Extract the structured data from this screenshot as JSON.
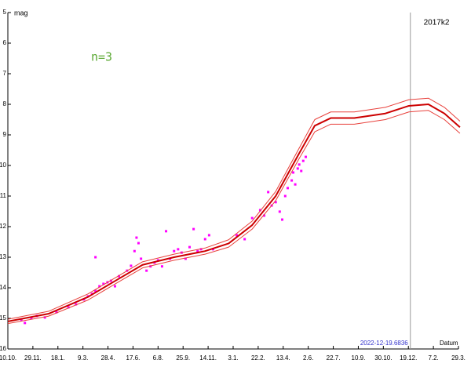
{
  "chart_data": {
    "type": "line",
    "title": "2017k2",
    "y_label": "mag",
    "x_label": "Datum",
    "annotation": "n=3",
    "x": [
      0,
      81,
      160,
      222,
      269,
      332,
      394,
      441,
      488,
      535,
      582,
      613,
      645,
      692,
      754,
      801,
      840,
      872,
      903
    ],
    "series": [
      {
        "color": "#cc0000",
        "values": [
          15.1,
          14.85,
          14.3,
          13.7,
          13.25,
          13.0,
          12.8,
          12.55,
          11.95,
          11.0,
          9.6,
          8.7,
          8.45,
          8.45,
          8.3,
          8.05,
          8.0,
          8.3,
          8.75
        ]
      },
      {
        "color": "#e8413c",
        "values": [
          15.03,
          14.77,
          14.2,
          13.6,
          13.15,
          12.9,
          12.7,
          12.43,
          11.82,
          10.85,
          9.43,
          8.5,
          8.25,
          8.25,
          8.1,
          7.85,
          7.8,
          8.1,
          8.55
        ]
      },
      {
        "color": "#e8413c",
        "values": [
          15.17,
          14.93,
          14.4,
          13.8,
          13.35,
          13.1,
          12.9,
          12.67,
          12.08,
          11.15,
          9.77,
          8.9,
          8.65,
          8.65,
          8.5,
          8.25,
          8.2,
          8.5,
          8.95
        ]
      }
    ],
    "observations": {
      "color": "#ff00ff",
      "x": [
        27,
        34,
        47,
        58,
        74,
        97,
        121,
        136,
        152,
        160,
        168,
        175,
        183,
        191,
        199,
        206,
        214,
        222,
        175,
        238,
        246,
        253,
        257,
        261,
        266,
        277,
        285,
        293,
        300,
        308,
        316,
        324,
        332,
        340,
        347,
        355,
        363,
        371,
        379,
        386,
        394,
        402,
        410,
        457,
        473,
        488,
        504,
        512,
        520,
        527,
        535,
        543,
        548,
        554,
        559,
        567,
        570,
        574,
        579,
        582,
        586,
        590,
        595
      ],
      "values": [
        15.05,
        15.15,
        15.0,
        14.92,
        14.97,
        14.8,
        14.64,
        14.54,
        14.38,
        14.28,
        14.2,
        14.1,
        13.95,
        13.87,
        13.82,
        13.77,
        13.95,
        13.62,
        13.0,
        13.44,
        13.28,
        12.8,
        12.36,
        12.54,
        13.05,
        13.44,
        13.3,
        13.18,
        13.1,
        13.3,
        12.15,
        13.05,
        12.8,
        12.74,
        12.85,
        13.05,
        12.67,
        12.08,
        12.8,
        12.74,
        12.41,
        12.28,
        12.74,
        12.28,
        12.41,
        11.72,
        11.46,
        11.64,
        10.87,
        11.31,
        11.2,
        11.51,
        11.77,
        11.0,
        10.74,
        10.49,
        10.23,
        10.62,
        10.1,
        9.97,
        10.18,
        9.85,
        9.72
      ]
    },
    "marker": {
      "x": 804,
      "label": "2022-12-19.6836",
      "color": "#999999",
      "label_color": "#3333cc"
    },
    "annotation_color": "#5aa832",
    "xlim": [
      0,
      900
    ],
    "xticks": [
      {
        "value": 0,
        "label": "10.10."
      },
      {
        "value": 50,
        "label": "29.11."
      },
      {
        "value": 100,
        "label": "18.1."
      },
      {
        "value": 150,
        "label": "9.3."
      },
      {
        "value": 200,
        "label": "28.4."
      },
      {
        "value": 250,
        "label": "17.6."
      },
      {
        "value": 300,
        "label": "6.8."
      },
      {
        "value": 350,
        "label": "25.9."
      },
      {
        "value": 400,
        "label": "14.11."
      },
      {
        "value": 450,
        "label": "3.1."
      },
      {
        "value": 500,
        "label": "22.2."
      },
      {
        "value": 550,
        "label": "13.4."
      },
      {
        "value": 600,
        "label": "2.6."
      },
      {
        "value": 650,
        "label": "22.7."
      },
      {
        "value": 700,
        "label": "10.9."
      },
      {
        "value": 750,
        "label": "30.10."
      },
      {
        "value": 800,
        "label": "19.12."
      },
      {
        "value": 850,
        "label": "7.2."
      },
      {
        "value": 900,
        "label": "29.3."
      }
    ],
    "ylim": [
      16,
      5
    ],
    "yticks": [
      5,
      6,
      7,
      8,
      9,
      10,
      11,
      12,
      13,
      14,
      15,
      16
    ]
  }
}
